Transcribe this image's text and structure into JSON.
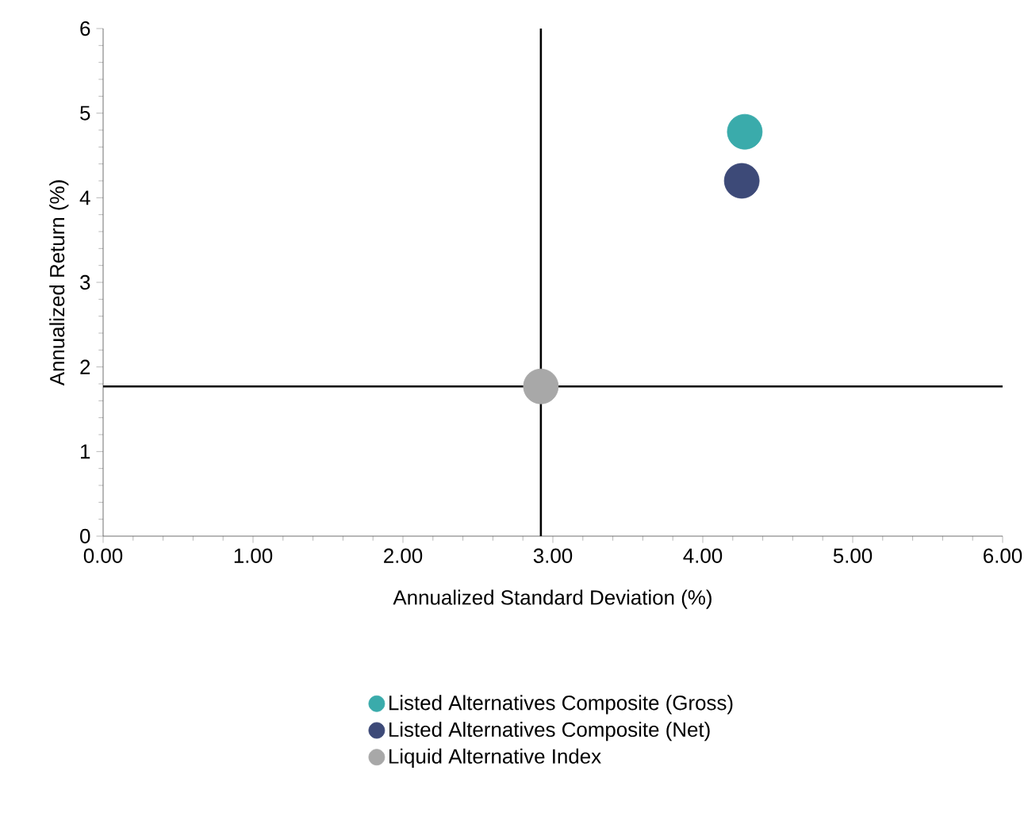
{
  "chart_data": {
    "type": "scatter",
    "xlabel": "Annualized Standard Deviation (%)",
    "ylabel": "Annualized Return (%)",
    "xlim": [
      0,
      6
    ],
    "ylim": [
      0,
      6
    ],
    "xticks": [
      {
        "value": 0,
        "label": "0.00"
      },
      {
        "value": 1,
        "label": "1.00"
      },
      {
        "value": 2,
        "label": "2.00"
      },
      {
        "value": 3,
        "label": "3.00"
      },
      {
        "value": 4,
        "label": "4.00"
      },
      {
        "value": 5,
        "label": "5.00"
      },
      {
        "value": 6,
        "label": "6.00"
      }
    ],
    "yticks": [
      0,
      1,
      2,
      3,
      4,
      5,
      6
    ],
    "marker": "circle",
    "legend": "bottom",
    "series": [
      {
        "name": "Listed Alternatives Composite (Gross)",
        "color": "#3aabab",
        "x": [
          4.28
        ],
        "values": [
          4.78
        ]
      },
      {
        "name": "Listed Alternatives Composite (Net)",
        "color": "#3d4a78",
        "x": [
          4.26
        ],
        "values": [
          4.2
        ]
      },
      {
        "name": "Liquid Alternative Index",
        "color": "#a8a8a8",
        "x": [
          2.92
        ],
        "values": [
          1.77
        ]
      }
    ],
    "ref_lines": [
      {
        "axis": "x",
        "value": 2.92,
        "color": "#000000"
      },
      {
        "axis": "y",
        "value": 1.77,
        "color": "#000000"
      }
    ]
  }
}
